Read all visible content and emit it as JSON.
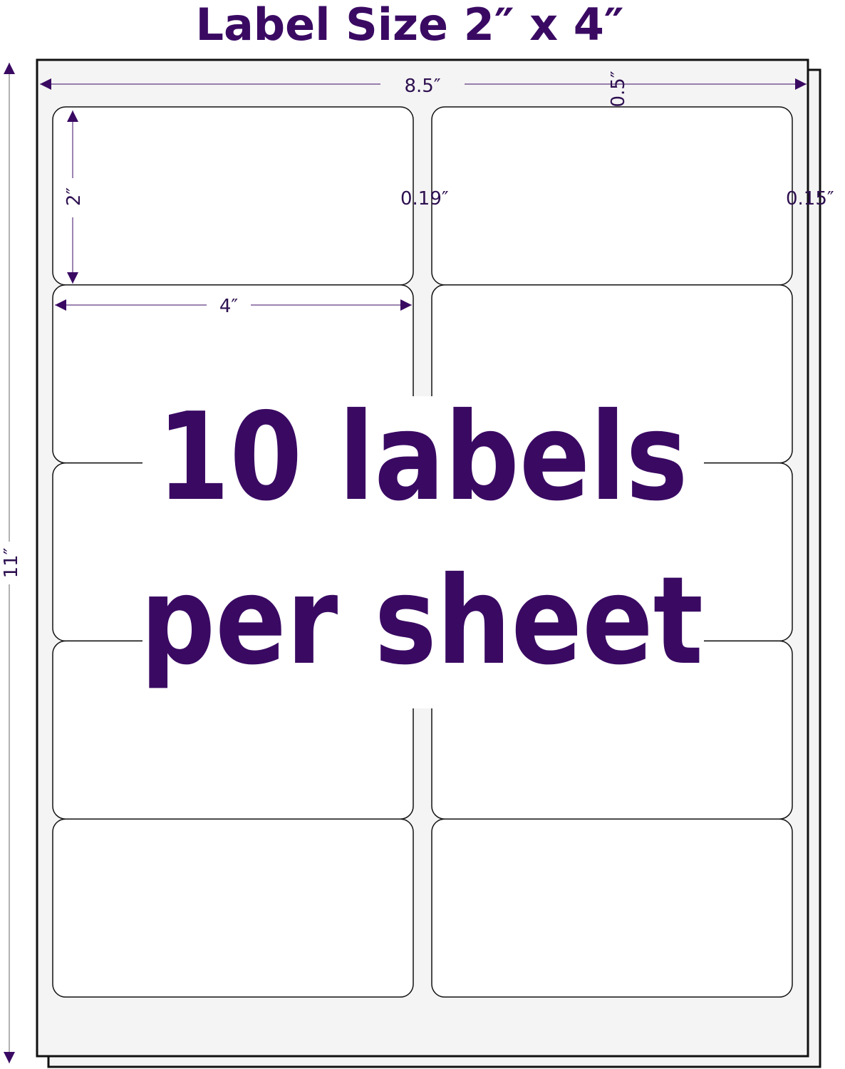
{
  "title": "Label Size 2″ x 4″",
  "headline": {
    "line1": "10 labels",
    "line2": "per sheet"
  },
  "dimensions": {
    "sheet_width": "8.5″",
    "sheet_height": "11″",
    "top_margin": "0.5″",
    "label_height": "2″",
    "label_width": "4″",
    "column_gap": "0.19″",
    "side_margin": "0.15″"
  },
  "layout": {
    "columns": 2,
    "rows": 5
  },
  "colors": {
    "accent": "#3a0a63",
    "sheet": "#f4f4f4",
    "label": "#ffffff",
    "outline": "#111111"
  }
}
